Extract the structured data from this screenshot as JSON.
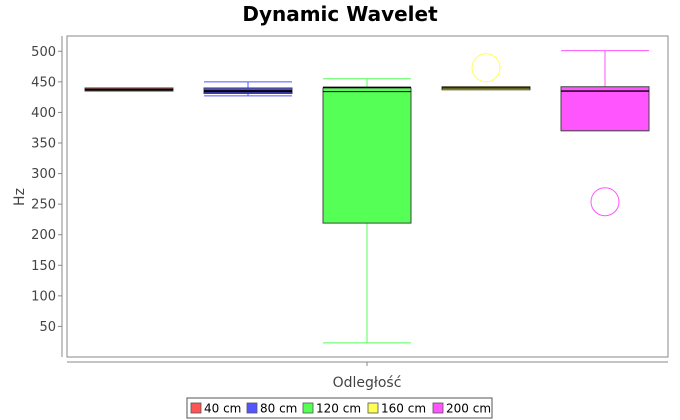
{
  "chart_data": {
    "type": "boxplot",
    "title": "Dynamic Wavelet",
    "xlabel": "Odległość",
    "ylabel": "Hz",
    "ylim": [
      0,
      525
    ],
    "yticks": [
      50,
      100,
      150,
      200,
      250,
      300,
      350,
      400,
      450,
      500
    ],
    "grid": false,
    "legend_position": "bottom",
    "series": [
      {
        "name": "40 cm",
        "color": "#ff5555",
        "min": 435,
        "q1": 435,
        "median": 438,
        "q3": 440,
        "max": 440,
        "mean": 437,
        "outliers": []
      },
      {
        "name": "80 cm",
        "color": "#5555ff",
        "min": 427,
        "q1": 431,
        "median": 436,
        "q3": 440,
        "max": 450,
        "mean": 434,
        "outliers": []
      },
      {
        "name": "120 cm",
        "color": "#55ff55",
        "min": 23,
        "q1": 219,
        "median": 434,
        "q3": 440,
        "max": 455,
        "mean": 441,
        "outliers": []
      },
      {
        "name": "160 cm",
        "color": "#ffff55",
        "min": 437,
        "q1": 437,
        "median": 440,
        "q3": 442,
        "max": 442,
        "mean": 440,
        "outliers": [
          473
        ]
      },
      {
        "name": "200 cm",
        "color": "#ff55ff",
        "min": 370,
        "q1": 370,
        "median": 435,
        "q3": 442,
        "max": 501,
        "mean": 435,
        "outliers": [
          254
        ]
      }
    ]
  }
}
